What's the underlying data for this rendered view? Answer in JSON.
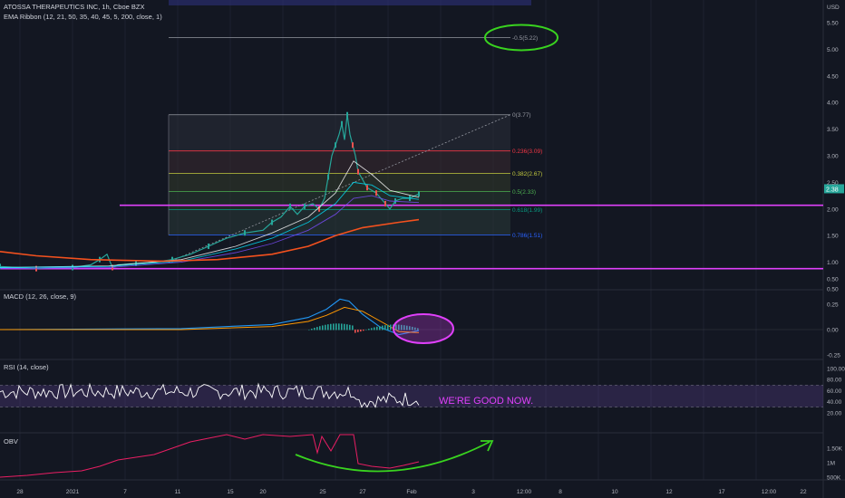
{
  "header": {
    "title": "ATOSSA THERAPEUTICS INC, 1h, Cboe BZX",
    "indicator": "EMA Ribbon (12, 21, 50, 35, 40, 45, 5, 200, close, 1)"
  },
  "price_axis": {
    "unit": "USD",
    "ticks": [
      "5.50",
      "5.00",
      "4.50",
      "4.00",
      "3.50",
      "3.00",
      "2.50",
      "2.00",
      "1.50",
      "1.00",
      "0.50"
    ],
    "current_price": "2.38"
  },
  "time_axis": {
    "ticks": [
      "28",
      "2021",
      "7",
      "11",
      "15",
      "20",
      "25",
      "27",
      "Feb",
      "3",
      "12:00",
      "8",
      "10",
      "12",
      "17",
      "12:00",
      "22"
    ]
  },
  "fib_levels": [
    {
      "label": "-0.5(5.22)",
      "value": 5.22,
      "color": "#9598a1"
    },
    {
      "label": "0(3.77)",
      "value": 3.77,
      "color": "#9598a1"
    },
    {
      "label": "0.236(3.09)",
      "value": 3.09,
      "color": "#f23645"
    },
    {
      "label": "0.382(2.67)",
      "value": 2.67,
      "color": "#c2c83e"
    },
    {
      "label": "0.5(2.33)",
      "value": 2.33,
      "color": "#4caf50"
    },
    {
      "label": "0.618(1.99)",
      "value": 1.99,
      "color": "#089981"
    },
    {
      "label": "0.786(1.51)",
      "value": 1.51,
      "color": "#2962ff"
    }
  ],
  "horizontal_lines": [
    2.07,
    0.88
  ],
  "macd": {
    "title": "MACD (12, 26, close, 9)",
    "ticks": [
      "0.50",
      "0.25",
      "0.00",
      "-0.25"
    ]
  },
  "rsi": {
    "title": "RSI (14, close)",
    "ticks": [
      "100.00",
      "80.00",
      "60.00",
      "40.00",
      "20.00"
    ],
    "annotation": "WE'RE GOOD NOW."
  },
  "obv": {
    "title": "OBV",
    "ticks": [
      "1.50K",
      "1M",
      "500K"
    ]
  },
  "colors": {
    "background": "#131722",
    "magenta": "#e040fb",
    "ema200": "#f4511e",
    "green_annotation": "#39d31f",
    "macd_line": "#2196f3",
    "signal_line": "#ff9800",
    "rsi_line": "#ffffff",
    "rsi_band": "#7e57c2",
    "obv_line": "#e91e63"
  }
}
